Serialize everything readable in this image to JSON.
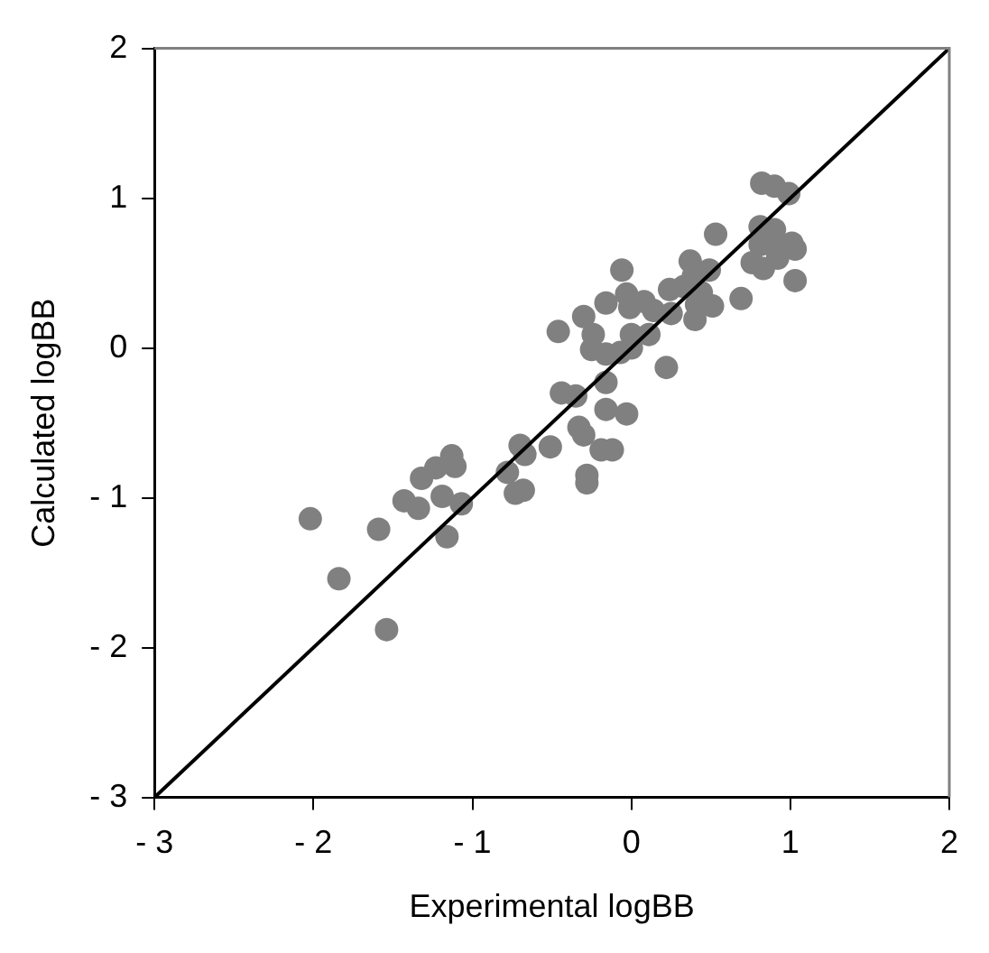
{
  "chart_data": {
    "type": "scatter",
    "xlabel": "Experimental logBB",
    "ylabel": "Calculated logBB",
    "xlim": [
      -3,
      2
    ],
    "ylim": [
      -3,
      2
    ],
    "xticks": [
      -3,
      -2,
      -1,
      0,
      1,
      2
    ],
    "yticks": [
      -3,
      -2,
      -1,
      0,
      1,
      2
    ],
    "grid": false,
    "legend": false,
    "series": [
      {
        "type": "scatter",
        "color": "#808080",
        "marker": "circle",
        "x": [
          -2.02,
          -1.84,
          -1.59,
          -1.54,
          -1.43,
          -1.34,
          -1.32,
          -1.23,
          -1.13,
          -1.11,
          -1.19,
          -1.16,
          -1.07,
          -0.78,
          -0.73,
          -0.68,
          -0.7,
          -0.67,
          -0.51,
          -0.46,
          -0.44,
          -0.35,
          -0.33,
          -0.3,
          -0.28,
          -0.28,
          -0.3,
          -0.24,
          -0.25,
          -0.19,
          -0.12,
          -0.16,
          -0.16,
          -0.16,
          -0.16,
          -0.06,
          -0.07,
          -0.03,
          -0.03,
          -0.01,
          0.0,
          0.0,
          0.08,
          0.14,
          0.11,
          0.22,
          0.24,
          0.25,
          0.33,
          0.37,
          0.39,
          0.41,
          0.4,
          0.44,
          0.49,
          0.51,
          0.53,
          0.69,
          0.76,
          0.81,
          0.81,
          0.83,
          0.82,
          0.9,
          0.9,
          0.92,
          0.99,
          1.01,
          1.03,
          1.03,
          0.88
        ],
        "values": [
          -1.14,
          -1.54,
          -1.21,
          -1.88,
          -1.02,
          -1.07,
          -0.87,
          -0.8,
          -0.72,
          -0.79,
          -0.99,
          -1.26,
          -1.04,
          -0.83,
          -0.97,
          -0.95,
          -0.65,
          -0.71,
          -0.66,
          0.11,
          -0.3,
          -0.32,
          -0.53,
          -0.58,
          -0.85,
          -0.9,
          0.21,
          0.09,
          -0.01,
          -0.68,
          -0.68,
          -0.41,
          -0.23,
          0.3,
          -0.04,
          0.52,
          -0.03,
          -0.44,
          0.36,
          0.27,
          0.09,
          0.0,
          0.31,
          0.25,
          0.09,
          -0.13,
          0.39,
          0.23,
          0.41,
          0.58,
          0.48,
          0.29,
          0.19,
          0.37,
          0.52,
          0.28,
          0.76,
          0.33,
          0.57,
          0.81,
          0.69,
          0.53,
          1.1,
          1.08,
          0.79,
          0.6,
          1.03,
          0.7,
          0.66,
          0.45,
          0.69
        ]
      },
      {
        "type": "line",
        "color": "#000000",
        "marker": "none",
        "line_style": "solid",
        "x": [
          -3,
          2
        ],
        "values": [
          -3,
          2
        ]
      }
    ]
  }
}
